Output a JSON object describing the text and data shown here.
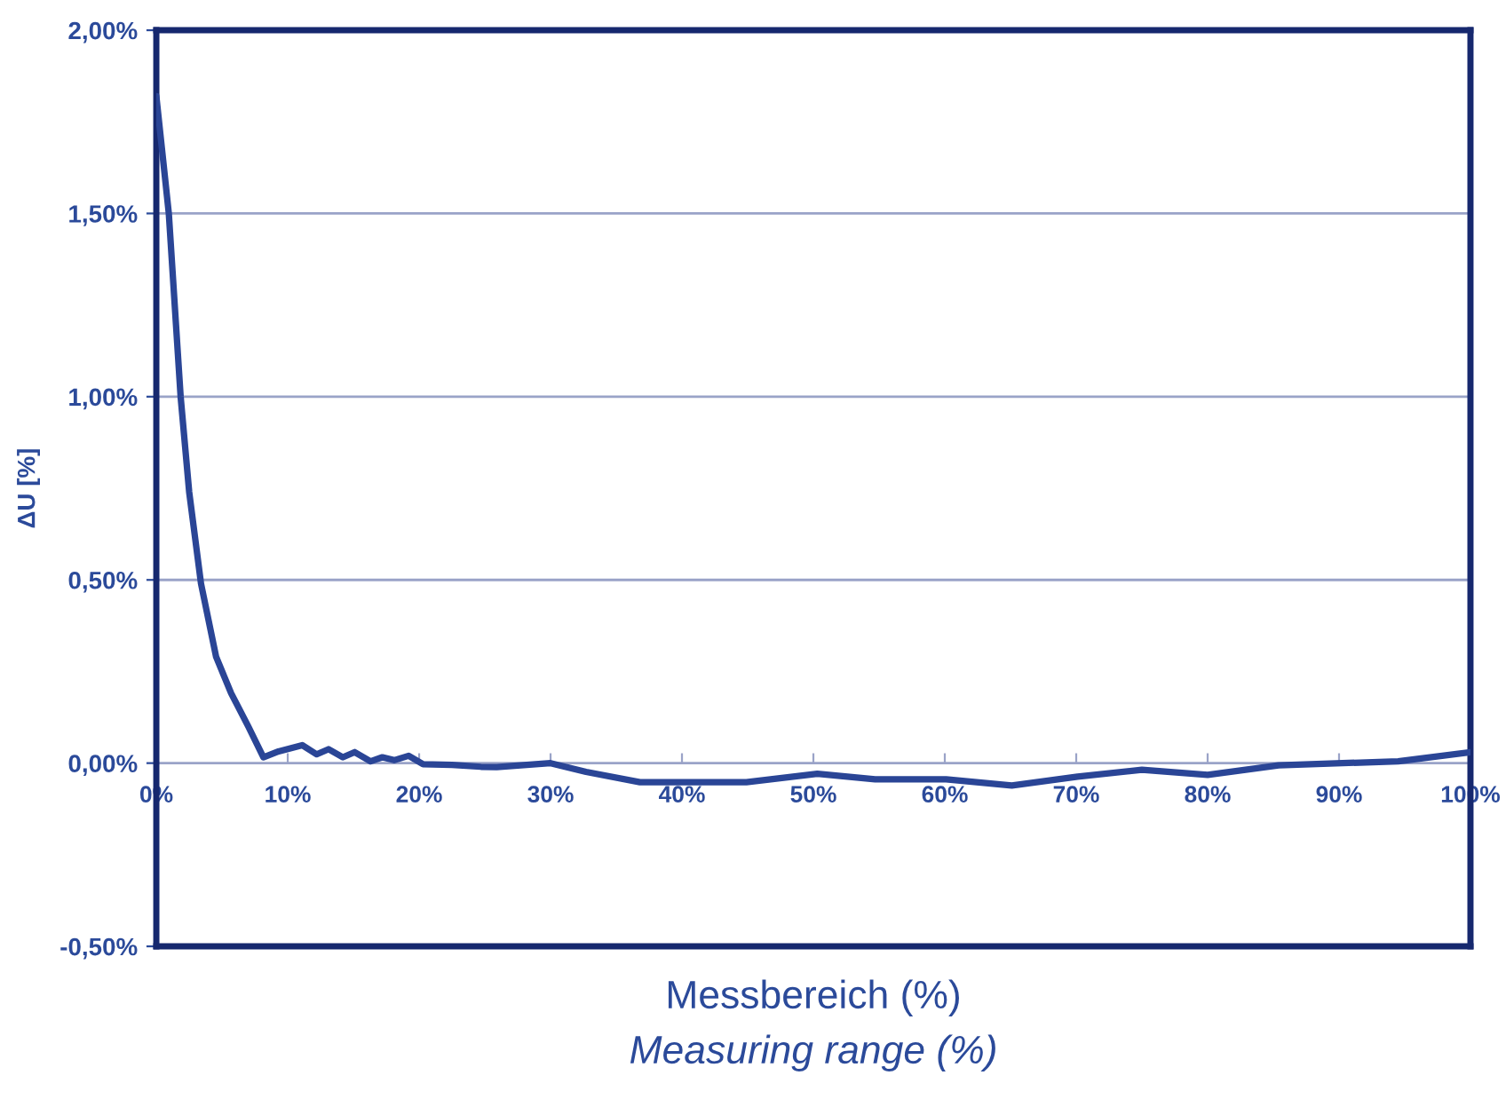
{
  "chart_data": {
    "type": "line",
    "xlabel": "Messbereich (%)",
    "ylabel": "ΔU [%]",
    "annotations": [
      "Measuring range (%)"
    ],
    "series": [
      {
        "color": "#2a4596",
        "x": [
          0,
          0.95,
          1.85,
          2.5,
          3.4,
          4.55,
          5.7,
          7.0,
          8.15,
          9.3,
          11.1,
          12.2,
          13.1,
          14.2,
          15.1,
          16.3,
          17.2,
          18.1,
          19.2,
          20.3,
          22.5,
          24.7,
          25.9,
          30.0,
          32.7,
          36.8,
          44.9,
          50.3,
          54.7,
          60.1,
          65.1,
          70.1,
          75.0,
          80.0,
          85.4,
          94.5,
          100
        ],
        "values": [
          1.82,
          1.5,
          1.0,
          0.74,
          0.49,
          0.29,
          0.19,
          0.1,
          0.016,
          0.032,
          0.049,
          0.024,
          0.038,
          0.016,
          0.03,
          0.005,
          0.016,
          0.008,
          0.02,
          -0.003,
          -0.005,
          -0.01,
          -0.011,
          0.0,
          -0.024,
          -0.052,
          -0.052,
          -0.029,
          -0.044,
          -0.044,
          -0.061,
          -0.037,
          -0.018,
          -0.032,
          -0.006,
          0.005,
          0.03
        ]
      }
    ],
    "xlim": [
      0,
      100
    ],
    "xticks": [
      {
        "value": 0,
        "label": "0%"
      },
      {
        "value": 10,
        "label": "10%"
      },
      {
        "value": 20,
        "label": "20%"
      },
      {
        "value": 30,
        "label": "30%"
      },
      {
        "value": 40,
        "label": "40%"
      },
      {
        "value": 50,
        "label": "50%"
      },
      {
        "value": 60,
        "label": "60%"
      },
      {
        "value": 70,
        "label": "70%"
      },
      {
        "value": 80,
        "label": "80%"
      },
      {
        "value": 90,
        "label": "90%"
      },
      {
        "value": 100,
        "label": "100%"
      }
    ],
    "ylim": [
      -0.5,
      2.0
    ],
    "yticks": [
      {
        "value": -0.5,
        "label": "-0,50%"
      },
      {
        "value": 0,
        "label": "0,00%"
      },
      {
        "value": 0.5,
        "label": "0,50%"
      },
      {
        "value": 1.0,
        "label": "1,00%"
      },
      {
        "value": 1.5,
        "label": "1,50%"
      },
      {
        "value": 2.0,
        "label": "2,00%"
      }
    ],
    "grid": "y",
    "marker": "none",
    "line_style": "solid"
  }
}
